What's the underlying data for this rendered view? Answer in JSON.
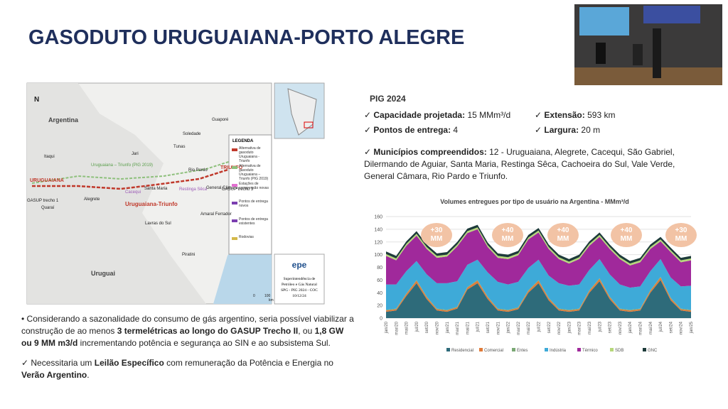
{
  "header": {
    "title": "GASODUTO URUGUAIANA-PORTO ALEGRE"
  },
  "map": {
    "labels": [
      {
        "text": "Argentina",
        "color": "#444"
      },
      {
        "text": "Uruguai",
        "color": "#444"
      },
      {
        "text": "URUGUAIANA",
        "color": "#c0392b"
      },
      {
        "text": "GASUP trecho 1",
        "color": "#222"
      },
      {
        "text": "Quaraí",
        "color": "#222"
      },
      {
        "text": "Itaqui",
        "color": "#222"
      },
      {
        "text": "Alegrete",
        "color": "#222"
      },
      {
        "text": "Jari",
        "color": "#222"
      },
      {
        "text": "Cacequi",
        "color": "#9b59b6"
      },
      {
        "text": "Santa Maria",
        "color": "#222"
      },
      {
        "text": "Uruguaiana – Triunfo (PIG 2019)",
        "color": "#5a9e4b"
      },
      {
        "text": "Uruguaiana-Triunfo",
        "color": "#c0392b"
      },
      {
        "text": "Restinga Sêca",
        "color": "#9b59b6"
      },
      {
        "text": "Rio Pardo",
        "color": "#222"
      },
      {
        "text": "General Câmara",
        "color": "#222"
      },
      {
        "text": "TRIUNFO",
        "color": "#c0392b"
      },
      {
        "text": "GASUP trecho 3",
        "color": "#222"
      },
      {
        "text": "Soledade",
        "color": "#222"
      },
      {
        "text": "Tunas",
        "color": "#222"
      },
      {
        "text": "Guaporé",
        "color": "#222"
      },
      {
        "text": "Lavras do Sul",
        "color": "#222"
      },
      {
        "text": "Amaral Ferrador",
        "color": "#222"
      },
      {
        "text": "Piratini",
        "color": "#222"
      },
      {
        "text": "N",
        "color": "#222"
      },
      {
        "text": "0",
        "color": "#222"
      },
      {
        "text": "100",
        "color": "#222"
      },
      {
        "text": "km",
        "color": "#222"
      }
    ],
    "legend_title": "LEGENDA",
    "legend": [
      "Alternativa de gasoduto Uruguaiana - Triunfo",
      "Alternativa de gasoduto Uruguaiana – Triunfo (PIG 2019)",
      "Estações de compressão novas",
      "Pontos de entrega novos",
      "Pontos de entrega existentes",
      "Rodovias"
    ],
    "logo": "epe",
    "credits": [
      "Superintendência de",
      "Petróleo e Gás Natural",
      "SPG - PIG 2024 - COC",
      "10/12/24"
    ]
  },
  "info": {
    "heading": "PIG 2024",
    "items": [
      {
        "label": "Capacidade projetada:",
        "value": "15 MMm³/d"
      },
      {
        "label": "Extensão:",
        "value": "593 km"
      },
      {
        "label": "Pontos de entrega:",
        "value": "4"
      },
      {
        "label": "Largura:",
        "value": "20 m"
      }
    ],
    "municipios": {
      "label": "Municípios compreendidos:",
      "value": "12 - Uruguaiana, Alegrete, Cacequi, São Gabriel, Dilermando de Aguiar, Santa Maria, Restinga Sêca, Cachoeira do Sul, Vale Verde, General Câmara, Rio Pardo e Triunfo."
    }
  },
  "bullets": [
    [
      {
        "text": "Considerando a sazonalidade do consumo de gás argentino, seria possível viabilizar a construção de ao menos ",
        "bold": false
      },
      {
        "text": "3 termelétricas ao longo do GASUP Trecho II",
        "bold": true
      },
      {
        "text": ", ou ",
        "bold": false
      },
      {
        "text": "1,8 GW ou 9 MM m3/d",
        "bold": true
      },
      {
        "text": " incrementando potência e segurança ao SIN e ao subsistema Sul.",
        "bold": false
      }
    ],
    [
      {
        "text": " Necessitaria um ",
        "bold": false
      },
      {
        "text": "Leilão Específico",
        "bold": true
      },
      {
        "text": " com remuneração da Potência e Energia no ",
        "bold": false
      },
      {
        "text": "Verão Argentino",
        "bold": true
      },
      {
        "text": ".",
        "bold": false
      }
    ]
  ],
  "chart_data": {
    "type": "stacked_area",
    "title": "Volumes entregues por tipo de usuário na Argentina - MMm³/d",
    "categories": [
      "jan/20",
      "mar/20",
      "mai/20",
      "jul/20",
      "set/20",
      "nov/20",
      "jan/21",
      "mar/21",
      "mai/21",
      "jul/21",
      "set/21",
      "nov/21",
      "jan/22",
      "mar/22",
      "mai/22",
      "jul/22",
      "set/22",
      "nov/22",
      "jan/23",
      "mar/23",
      "mai/23",
      "jul/23",
      "set/23",
      "nov/23",
      "jan/24",
      "mar/24",
      "mai/24",
      "jul/24",
      "set/24",
      "nov/24",
      "jan/25"
    ],
    "ylim": [
      0,
      160
    ],
    "yticks": [
      0,
      20,
      40,
      60,
      80,
      100,
      120,
      140,
      160
    ],
    "grid": true,
    "series": [
      {
        "name": "Residencial",
        "color": "#2e6b7a",
        "values": [
          10,
          12,
          35,
          55,
          30,
          12,
          10,
          15,
          45,
          55,
          30,
          12,
          10,
          14,
          40,
          55,
          28,
          12,
          10,
          12,
          40,
          58,
          30,
          12,
          10,
          12,
          40,
          60,
          28,
          12,
          10
        ]
      },
      {
        "name": "Comercial",
        "color": "#e07b39",
        "values": [
          2,
          2,
          3,
          4,
          3,
          2,
          2,
          2,
          3,
          4,
          3,
          2,
          2,
          2,
          3,
          4,
          3,
          2,
          2,
          2,
          3,
          4,
          3,
          2,
          2,
          2,
          3,
          4,
          3,
          2,
          2
        ]
      },
      {
        "name": "Entes",
        "color": "#7aa874",
        "values": [
          1,
          1,
          1,
          1,
          1,
          1,
          1,
          1,
          1,
          1,
          1,
          1,
          1,
          1,
          1,
          1,
          1,
          1,
          1,
          1,
          1,
          1,
          1,
          1,
          1,
          1,
          1,
          1,
          1,
          1,
          1
        ]
      },
      {
        "name": "Indústria",
        "color": "#3eaad8",
        "values": [
          40,
          38,
          35,
          30,
          35,
          40,
          42,
          40,
          35,
          32,
          38,
          42,
          40,
          40,
          35,
          32,
          35,
          40,
          38,
          38,
          32,
          30,
          35,
          38,
          35,
          35,
          30,
          28,
          32,
          35,
          38
        ]
      },
      {
        "name": "Térmico",
        "color": "#a0299b",
        "values": [
          45,
          38,
          40,
          40,
          40,
          40,
          42,
          55,
          50,
          48,
          40,
          38,
          40,
          42,
          45,
          43,
          42,
          38,
          35,
          40,
          38,
          35,
          40,
          40,
          35,
          38,
          35,
          28,
          40,
          38,
          40
        ]
      },
      {
        "name": "SDB",
        "color": "#b6d77a",
        "values": [
          3,
          3,
          3,
          3,
          3,
          3,
          3,
          3,
          3,
          3,
          3,
          3,
          3,
          3,
          3,
          3,
          3,
          3,
          3,
          3,
          3,
          3,
          3,
          3,
          3,
          3,
          3,
          3,
          3,
          3,
          3
        ]
      },
      {
        "name": "GNC",
        "color": "#1d3b3a",
        "values": [
          4,
          4,
          4,
          4,
          4,
          4,
          4,
          4,
          4,
          4,
          4,
          4,
          4,
          4,
          4,
          4,
          4,
          4,
          4,
          4,
          4,
          4,
          4,
          4,
          4,
          4,
          4,
          4,
          4,
          4,
          4
        ]
      }
    ],
    "annotations": [
      "+30 MM",
      "+40 MM",
      "+40 MM",
      "+40 MM",
      "+30 MM"
    ]
  }
}
